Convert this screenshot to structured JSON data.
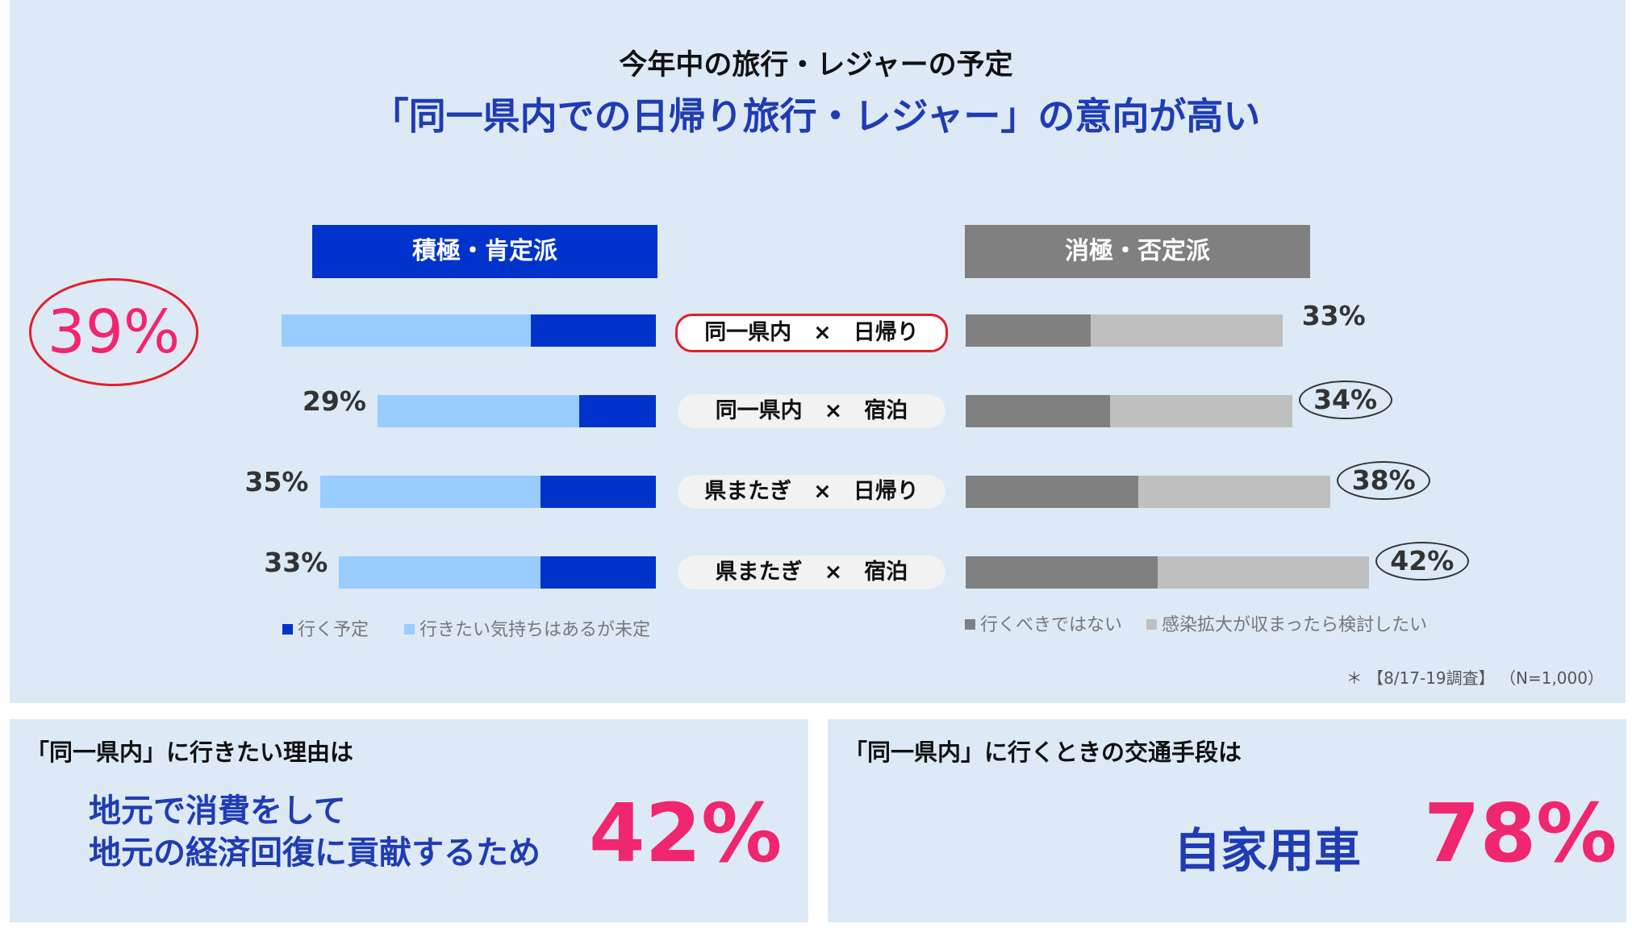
{
  "header": {
    "subtitle": "今年中の旅行・レジャーの予定",
    "title": "「同一県内での日帰り旅行・レジャー」の意向が高い"
  },
  "colors": {
    "plan_to_go": "#0033cc",
    "want_undecided": "#99ccff",
    "should_not_go": "#808080",
    "after_infection": "#bfbfbf",
    "highlight_red": "#e0202a",
    "pink": "#f0266e"
  },
  "chart_data": {
    "type": "bar",
    "orientation": "horizontal-diverging",
    "groups": {
      "positive": "積極・肯定派",
      "negative": "消極・否定派"
    },
    "categories": [
      "同一県内　×　日帰り",
      "同一県内　×　宿泊",
      "県またぎ　×　日帰り",
      "県またぎ　×　宿泊"
    ],
    "series": [
      {
        "name": "行く予定",
        "group": "positive",
        "values": [
          13,
          8,
          12,
          12
        ]
      },
      {
        "name": "行きたい気持ちはあるが未定",
        "group": "positive",
        "values": [
          26,
          21,
          23,
          21
        ]
      },
      {
        "name": "行くべきではない",
        "group": "negative",
        "values": [
          13,
          15,
          18,
          20
        ]
      },
      {
        "name": "感染拡大が収まったら検討したい",
        "group": "negative",
        "values": [
          20,
          19,
          20,
          22
        ]
      }
    ],
    "positive_totals": [
      "39%",
      "29%",
      "35%",
      "33%"
    ],
    "negative_totals": [
      "33%",
      "34%",
      "38%",
      "42%"
    ],
    "highlighted_category": 0
  },
  "footnote": "＊ 【8/17-19調査】 （N=1,000）",
  "box_left": {
    "heading": "「同一県内」に行きたい理由は",
    "line1": "地元で消費をして",
    "line2": "地元の経済回復に貢献するため",
    "pct": "42%"
  },
  "box_right": {
    "heading": "「同一県内」に行くときの交通手段は",
    "answer": "自家用車",
    "pct": "78%"
  }
}
